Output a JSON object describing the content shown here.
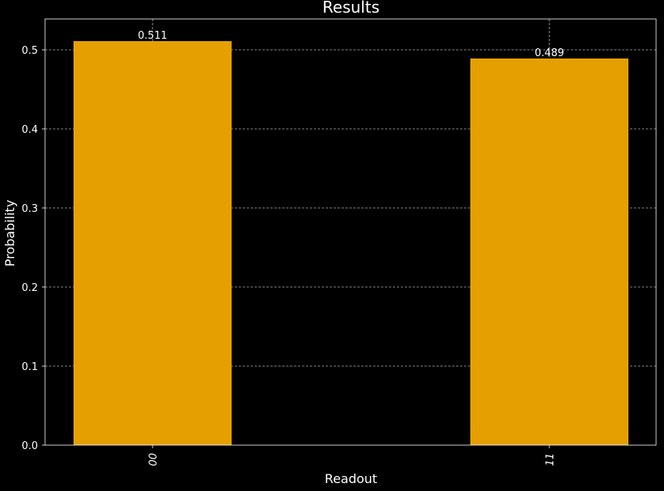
{
  "chart_data": {
    "type": "bar",
    "title": "Results",
    "xlabel": "Readout",
    "ylabel": "Probability",
    "categories": [
      "00",
      "11"
    ],
    "values": [
      0.511,
      0.489
    ],
    "data_labels": [
      "0.511",
      "0.489"
    ],
    "ylim": [
      0,
      0.539
    ],
    "yticks": [
      0.0,
      0.1,
      0.2,
      0.3,
      0.4,
      0.5
    ],
    "ytick_labels": [
      "0.0",
      "0.1",
      "0.2",
      "0.3",
      "0.4",
      "0.5"
    ],
    "xtick_rotation": "vertical",
    "grid": true,
    "grid_style": "dashed",
    "legend": "none",
    "colors": {
      "background": "#000000",
      "bar": "#E5A000",
      "text": "#FFFFFF",
      "grid": "#FFFFFF",
      "spine": "#FFFFFF"
    }
  }
}
